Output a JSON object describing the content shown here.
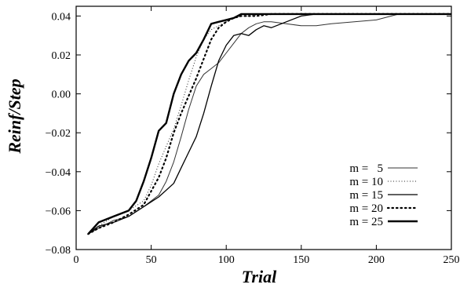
{
  "chart_data": {
    "type": "line",
    "xlabel": "Trial",
    "ylabel": "Reinf/Step",
    "xlim": [
      0,
      250
    ],
    "ylim": [
      -0.08,
      0.045
    ],
    "x_ticks": [
      "0",
      "50",
      "100",
      "150",
      "200",
      "250"
    ],
    "y_ticks": [
      "−0.08",
      "−0.06",
      "−0.04",
      "−0.02",
      "0.00",
      "0.02",
      "0.04"
    ],
    "x_tick_values": [
      0,
      50,
      100,
      150,
      200,
      250
    ],
    "y_tick_values": [
      -0.08,
      -0.06,
      -0.04,
      -0.02,
      0.0,
      0.02,
      0.04
    ],
    "grid": false,
    "legend_position": "lower-right",
    "series": [
      {
        "name": "m =   5",
        "style": "thin-solid",
        "x": [
          8,
          15,
          25,
          35,
          45,
          55,
          60,
          65,
          70,
          75,
          80,
          85,
          90,
          95,
          100,
          105,
          110,
          115,
          120,
          125,
          130,
          140,
          150,
          160,
          170,
          200,
          215,
          250
        ],
        "y": [
          -0.072,
          -0.069,
          -0.065,
          -0.063,
          -0.058,
          -0.052,
          -0.045,
          -0.035,
          -0.022,
          -0.008,
          0.004,
          0.01,
          0.013,
          0.016,
          0.021,
          0.026,
          0.031,
          0.034,
          0.036,
          0.037,
          0.037,
          0.036,
          0.035,
          0.035,
          0.036,
          0.038,
          0.041,
          0.041
        ]
      },
      {
        "name": "m = 10",
        "style": "fine-dotted",
        "x": [
          8,
          15,
          25,
          35,
          45,
          50,
          55,
          60,
          65,
          70,
          75,
          80,
          85,
          90,
          95,
          100,
          105,
          110,
          115,
          125,
          140,
          200,
          250
        ],
        "y": [
          -0.072,
          -0.068,
          -0.063,
          -0.06,
          -0.055,
          -0.047,
          -0.036,
          -0.027,
          -0.018,
          -0.006,
          0.007,
          0.019,
          0.028,
          0.033,
          0.035,
          0.037,
          0.039,
          0.04,
          0.04,
          0.041,
          0.041,
          0.041,
          0.041
        ]
      },
      {
        "name": "m = 15",
        "style": "solid",
        "x": [
          8,
          15,
          25,
          35,
          45,
          55,
          65,
          70,
          75,
          80,
          85,
          90,
          95,
          100,
          105,
          110,
          115,
          120,
          125,
          130,
          140,
          150,
          160,
          200,
          250
        ],
        "y": [
          -0.072,
          -0.068,
          -0.066,
          -0.063,
          -0.058,
          -0.053,
          -0.046,
          -0.038,
          -0.03,
          -0.022,
          -0.01,
          0.004,
          0.017,
          0.025,
          0.03,
          0.031,
          0.03,
          0.033,
          0.035,
          0.034,
          0.037,
          0.04,
          0.041,
          0.041,
          0.041
        ]
      },
      {
        "name": "m = 20",
        "style": "coarse-dotted",
        "x": [
          8,
          15,
          25,
          35,
          45,
          50,
          55,
          60,
          65,
          70,
          75,
          80,
          85,
          90,
          95,
          100,
          105,
          110,
          115,
          120,
          130,
          150,
          200,
          250
        ],
        "y": [
          -0.072,
          -0.069,
          -0.066,
          -0.062,
          -0.057,
          -0.05,
          -0.043,
          -0.033,
          -0.02,
          -0.01,
          -0.001,
          0.008,
          0.018,
          0.028,
          0.034,
          0.037,
          0.039,
          0.04,
          0.04,
          0.04,
          0.041,
          0.041,
          0.041,
          0.041
        ]
      },
      {
        "name": "m = 25",
        "style": "thick-solid",
        "x": [
          8,
          15,
          25,
          35,
          40,
          45,
          50,
          55,
          60,
          65,
          70,
          75,
          80,
          85,
          90,
          95,
          100,
          105,
          110,
          115,
          150,
          200,
          250
        ],
        "y": [
          -0.072,
          -0.066,
          -0.063,
          -0.06,
          -0.055,
          -0.045,
          -0.033,
          -0.019,
          -0.015,
          0.0,
          0.01,
          0.017,
          0.021,
          0.028,
          0.036,
          0.037,
          0.038,
          0.039,
          0.041,
          0.041,
          0.041,
          0.041,
          0.041
        ]
      }
    ]
  }
}
